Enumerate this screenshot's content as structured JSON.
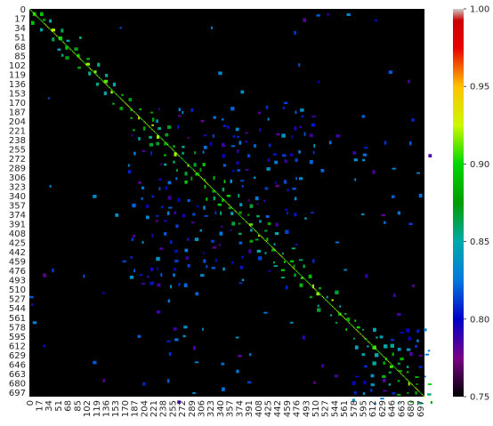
{
  "chart_data": {
    "type": "heatmap",
    "title": "",
    "xlabel": "",
    "ylabel": "",
    "n": 705,
    "tick_labels": [
      0,
      17,
      34,
      51,
      68,
      85,
      102,
      119,
      136,
      153,
      170,
      187,
      204,
      221,
      238,
      255,
      272,
      289,
      306,
      323,
      340,
      357,
      374,
      391,
      408,
      425,
      442,
      459,
      476,
      493,
      510,
      527,
      544,
      561,
      578,
      595,
      612,
      629,
      646,
      663,
      680,
      697
    ],
    "colorbar": {
      "colormap": "nipy_spectral",
      "vmin": 0.75,
      "vmax": 1.0,
      "ticks": [
        "0.75",
        "0.80",
        "0.85",
        "0.90",
        "0.95",
        "1.00"
      ]
    },
    "pattern": "Sparse block-structured similarity matrix: bright diagonal (~0.88–0.93), off-diagonal blocks mostly 0.78–0.87, background below 0.75 (black). Denser central region roughly between indices 170 and 500, another dense block near 600–700."
  }
}
